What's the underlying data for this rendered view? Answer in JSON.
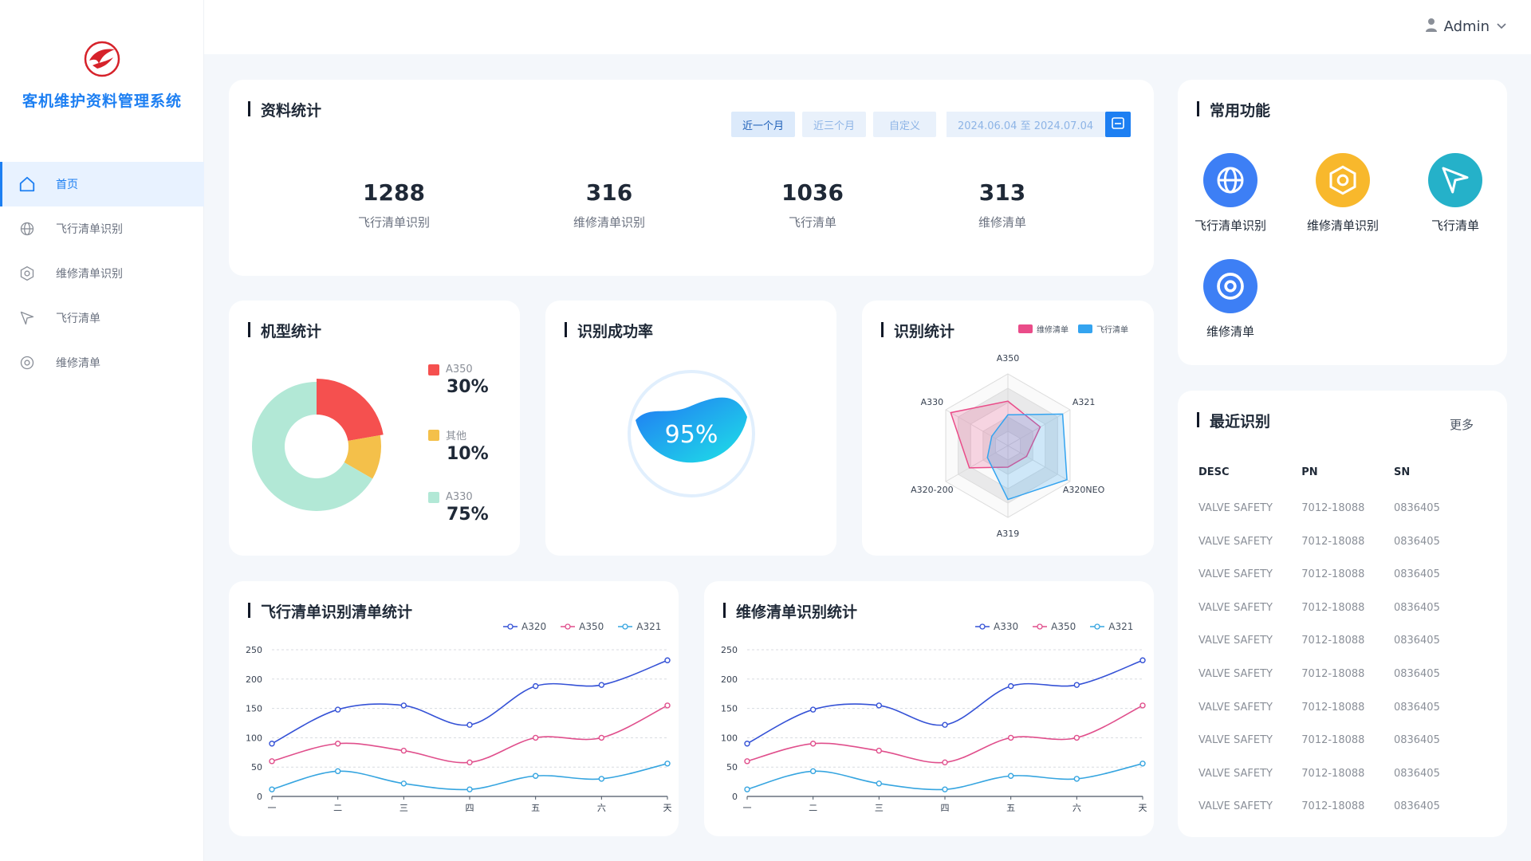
{
  "sidebar": {
    "title": "客机维护资料管理系统",
    "items": [
      {
        "label": "首页",
        "icon": "home-icon"
      },
      {
        "label": "飞行清单识别",
        "icon": "globe-icon"
      },
      {
        "label": "维修清单识别",
        "icon": "hexagon-icon"
      },
      {
        "label": "飞行清单",
        "icon": "send-icon"
      },
      {
        "label": "维修清单",
        "icon": "target-icon"
      }
    ]
  },
  "topbar": {
    "user": "Admin"
  },
  "stats": {
    "title": "资料统计",
    "ranges": [
      "近一个月",
      "近三个月",
      "自定义"
    ],
    "date_range": "2024.06.04 至 2024.07.04",
    "items": [
      {
        "value": "1288",
        "label": "飞行清单识别"
      },
      {
        "value": "316",
        "label": "维修清单识别"
      },
      {
        "value": "1036",
        "label": "飞行清单"
      },
      {
        "value": "313",
        "label": "维修清单"
      }
    ]
  },
  "model_stats": {
    "title": "机型统计",
    "legend": [
      {
        "name": "A350",
        "value": "30%",
        "color": "#f5504f"
      },
      {
        "name": "其他",
        "value": "10%",
        "color": "#f4c04a"
      },
      {
        "name": "A330",
        "value": "75%",
        "color": "#b2e8d6"
      }
    ]
  },
  "success_rate": {
    "title": "识别成功率",
    "value": "95%"
  },
  "recog_stats": {
    "title": "识别统计",
    "legend": [
      {
        "name": "维修清单",
        "color": "#ea4c89"
      },
      {
        "name": "飞行清单",
        "color": "#34a4f0"
      }
    ],
    "axes": [
      "A350",
      "A321",
      "A320NEO",
      "A319",
      "A320-200",
      "A330"
    ]
  },
  "quick": {
    "title": "常用功能",
    "items": [
      {
        "label": "飞行清单识别",
        "icon": "globe-icon",
        "color": "#3d7ff5"
      },
      {
        "label": "维修清单识别",
        "icon": "hexagon-icon",
        "color": "#f8b82c"
      },
      {
        "label": "飞行清单",
        "icon": "send-icon",
        "color": "#25b1c9"
      },
      {
        "label": "维修清单",
        "icon": "target-icon",
        "color": "#3d7ff5"
      }
    ]
  },
  "recent": {
    "title": "最近识别",
    "more": "更多",
    "headers": [
      "DESC",
      "PN",
      "SN"
    ],
    "rows": [
      [
        "VALVE SAFETY",
        "7012-18088",
        "0836405"
      ],
      [
        "VALVE SAFETY",
        "7012-18088",
        "0836405"
      ],
      [
        "VALVE SAFETY",
        "7012-18088",
        "0836405"
      ],
      [
        "VALVE SAFETY",
        "7012-18088",
        "0836405"
      ],
      [
        "VALVE SAFETY",
        "7012-18088",
        "0836405"
      ],
      [
        "VALVE SAFETY",
        "7012-18088",
        "0836405"
      ],
      [
        "VALVE SAFETY",
        "7012-18088",
        "0836405"
      ],
      [
        "VALVE SAFETY",
        "7012-18088",
        "0836405"
      ],
      [
        "VALVE SAFETY",
        "7012-18088",
        "0836405"
      ],
      [
        "VALVE SAFETY",
        "7012-18088",
        "0836405"
      ]
    ]
  },
  "chart_data": [
    {
      "type": "pie",
      "title": "机型统计",
      "categories": [
        "A350",
        "其他",
        "A330"
      ],
      "values": [
        30,
        10,
        75
      ]
    },
    {
      "type": "radar",
      "title": "识别统计",
      "axes": [
        "A350",
        "A321",
        "A320NEO",
        "A319",
        "A320-200",
        "A330"
      ],
      "series": [
        {
          "name": "维修清单",
          "values": [
            62,
            52,
            30,
            30,
            62,
            92
          ],
          "color": "#ea4c89"
        },
        {
          "name": "飞行清单",
          "values": [
            43,
            88,
            95,
            75,
            33,
            26
          ],
          "color": "#34a4f0"
        }
      ]
    },
    {
      "type": "line",
      "title": "飞行清单识别清单统计",
      "categories": [
        "一",
        "二",
        "三",
        "四",
        "五",
        "六",
        "天"
      ],
      "ylim": [
        0,
        250
      ],
      "yticks": [
        0,
        50,
        100,
        150,
        200,
        250
      ],
      "series": [
        {
          "name": "A320",
          "values": [
            90,
            148,
            155,
            122,
            188,
            190,
            232
          ],
          "color": "#3552d6"
        },
        {
          "name": "A350",
          "values": [
            60,
            90,
            78,
            58,
            100,
            100,
            155
          ],
          "color": "#e04f8c"
        },
        {
          "name": "A321",
          "values": [
            12,
            43,
            22,
            12,
            35,
            30,
            56
          ],
          "color": "#36a5e0"
        }
      ]
    },
    {
      "type": "line",
      "title": "维修清单识别统计",
      "categories": [
        "一",
        "二",
        "三",
        "四",
        "五",
        "六",
        "天"
      ],
      "ylim": [
        0,
        250
      ],
      "yticks": [
        0,
        50,
        100,
        150,
        200,
        250
      ],
      "series": [
        {
          "name": "A330",
          "values": [
            90,
            148,
            155,
            122,
            188,
            190,
            232
          ],
          "color": "#3552d6"
        },
        {
          "name": "A350",
          "values": [
            60,
            90,
            78,
            58,
            100,
            100,
            155
          ],
          "color": "#e04f8c"
        },
        {
          "name": "A321",
          "values": [
            12,
            43,
            22,
            12,
            35,
            30,
            56
          ],
          "color": "#36a5e0"
        }
      ]
    }
  ]
}
